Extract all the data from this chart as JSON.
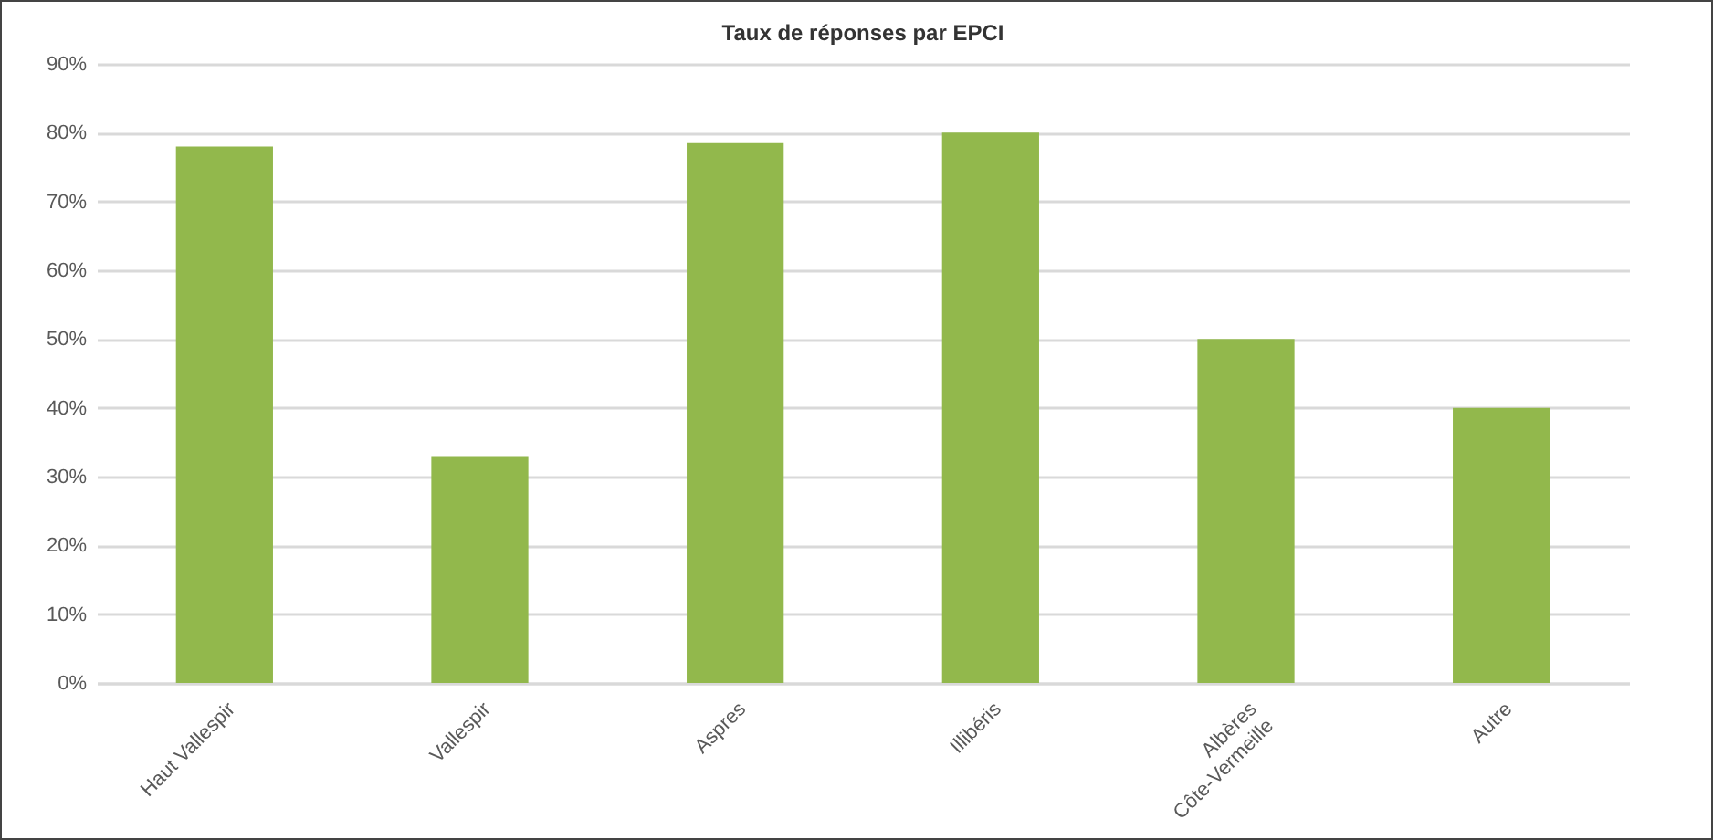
{
  "chart_data": {
    "type": "bar",
    "title": "Taux de réponses par EPCI",
    "categories": [
      "Haut Vallespir",
      "Vallespir",
      "Aspres",
      "Illibéris",
      "Albères\nCôte-Vermeille",
      "Autre"
    ],
    "values": [
      78,
      33,
      78.5,
      80,
      50,
      40
    ],
    "color": "#92b84c",
    "ylim": [
      0,
      90
    ],
    "yticks": [
      {
        "value": 0,
        "label": "0%"
      },
      {
        "value": 10,
        "label": "10%"
      },
      {
        "value": 20,
        "label": "20%"
      },
      {
        "value": 30,
        "label": "30%"
      },
      {
        "value": 40,
        "label": "40%"
      },
      {
        "value": 50,
        "label": "50%"
      },
      {
        "value": 60,
        "label": "60%"
      },
      {
        "value": 70,
        "label": "70%"
      },
      {
        "value": 80,
        "label": "80%"
      },
      {
        "value": 90,
        "label": "90%"
      }
    ],
    "grid": "y"
  }
}
